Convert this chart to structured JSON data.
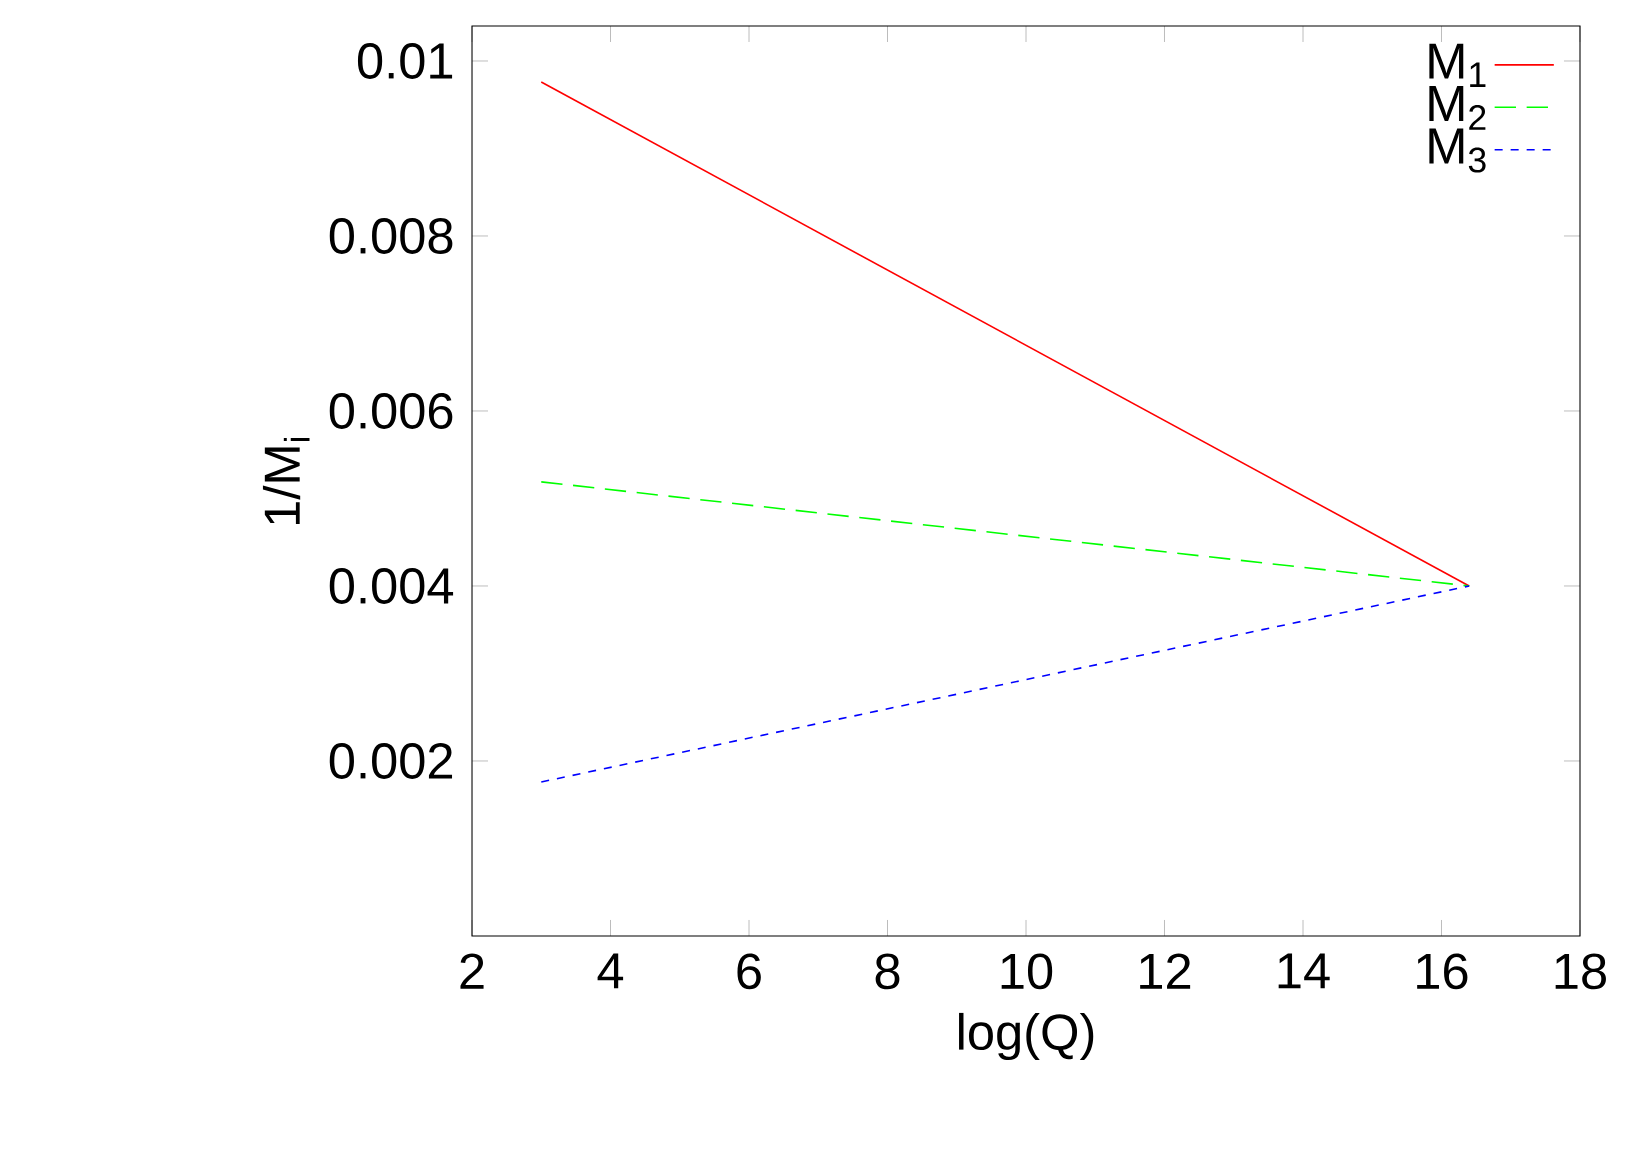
{
  "chart_data": {
    "type": "line",
    "xlabel": "log(Q)",
    "ylabel": "1/M$_{i}$",
    "xlim": [
      2,
      18
    ],
    "ylim": [
      0,
      0.0104
    ],
    "xticks": [
      2,
      4,
      6,
      8,
      10,
      12,
      14,
      16,
      18
    ],
    "yticks": [
      0.002,
      0.004,
      0.006,
      0.008,
      0.01
    ],
    "legend": "top right",
    "grid": false,
    "marker": "none",
    "x": [
      3,
      16.4
    ],
    "series": [
      {
        "name": "M$_{1}$",
        "color": "#ff0000",
        "line_style": "solid",
        "values": [
          0.00976,
          0.004
        ]
      },
      {
        "name": "M$_{2}$",
        "color": "#00ff00",
        "line_style": "dashed",
        "values": [
          0.00519,
          0.004
        ]
      },
      {
        "name": "M$_{3}$",
        "color": "#0000ff",
        "line_style": "dotted",
        "values": [
          0.00176,
          0.004
        ]
      }
    ]
  }
}
